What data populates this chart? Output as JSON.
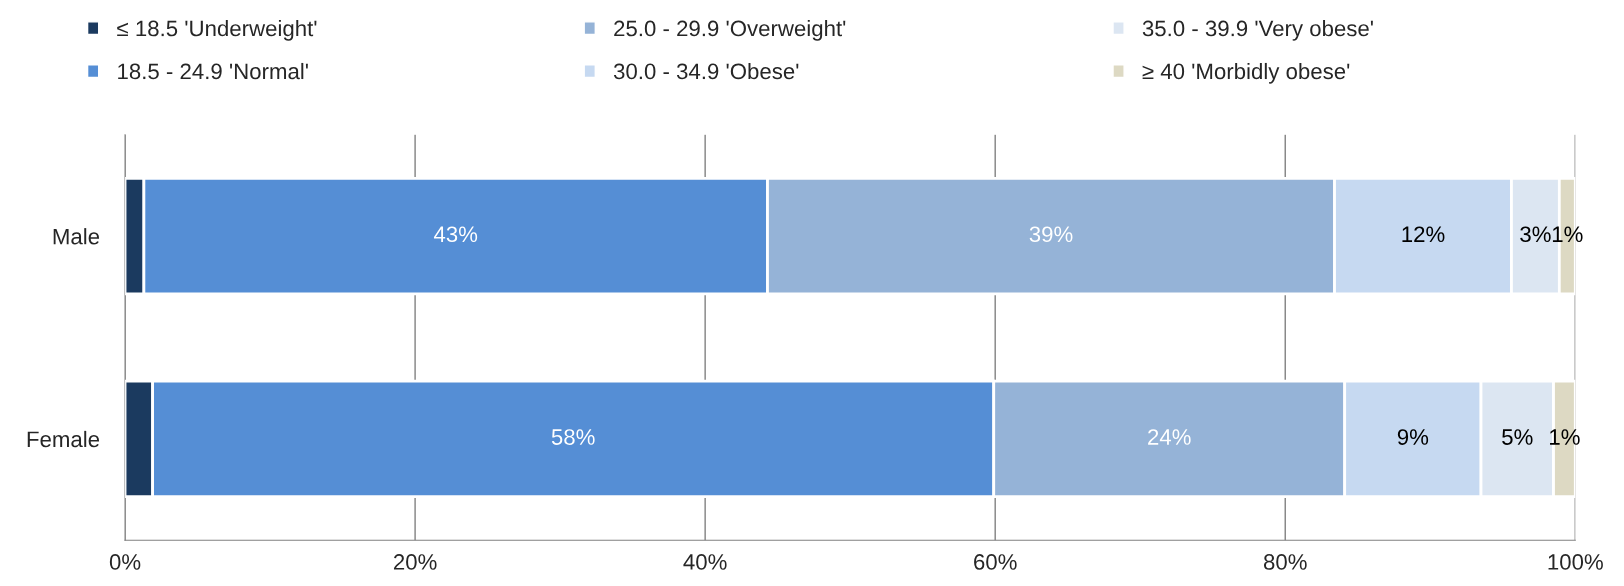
{
  "chart_data": {
    "type": "bar",
    "orientation": "horizontal",
    "stacked": true,
    "categories": [
      "Male",
      "Female"
    ],
    "series": [
      {
        "name": "≤ 18.5 'Underweight'",
        "color": "#1b3a5f",
        "values": [
          1.3,
          1.9
        ],
        "value_labels": [
          null,
          null
        ]
      },
      {
        "name": "18.5 - 24.9 'Normal'",
        "color": "#558ed5",
        "values": [
          43.0,
          58.0
        ],
        "value_labels": [
          "43%",
          "58%"
        ]
      },
      {
        "name": "25.0 - 29.9 'Overweight'",
        "color": "#95b3d7",
        "values": [
          39.1,
          24.2
        ],
        "value_labels": [
          "39%",
          "24%"
        ]
      },
      {
        "name": "30.0 - 34.9 'Obese'",
        "color": "#c6d9f1",
        "values": [
          12.2,
          9.4
        ],
        "value_labels": [
          "12%",
          "9%"
        ]
      },
      {
        "name": "35.0 - 39.9 'Very obese'",
        "color": "#dce6f2",
        "values": [
          3.3,
          5.0
        ],
        "value_labels": [
          "3%",
          "5%"
        ]
      },
      {
        "name": "≥ 40 'Morbidly obese'",
        "color": "#ddd9c3",
        "values": [
          1.1,
          1.5
        ],
        "value_labels": [
          "1%",
          "1%"
        ]
      }
    ],
    "xlim": [
      0,
      100
    ],
    "xticks": [
      {
        "value": 0,
        "label": "0%"
      },
      {
        "value": 20,
        "label": "20%"
      },
      {
        "value": 40,
        "label": "40%"
      },
      {
        "value": 60,
        "label": "60%"
      },
      {
        "value": 80,
        "label": "80%"
      },
      {
        "value": 100,
        "label": "100%"
      }
    ],
    "grid": "x",
    "legend": "top"
  }
}
